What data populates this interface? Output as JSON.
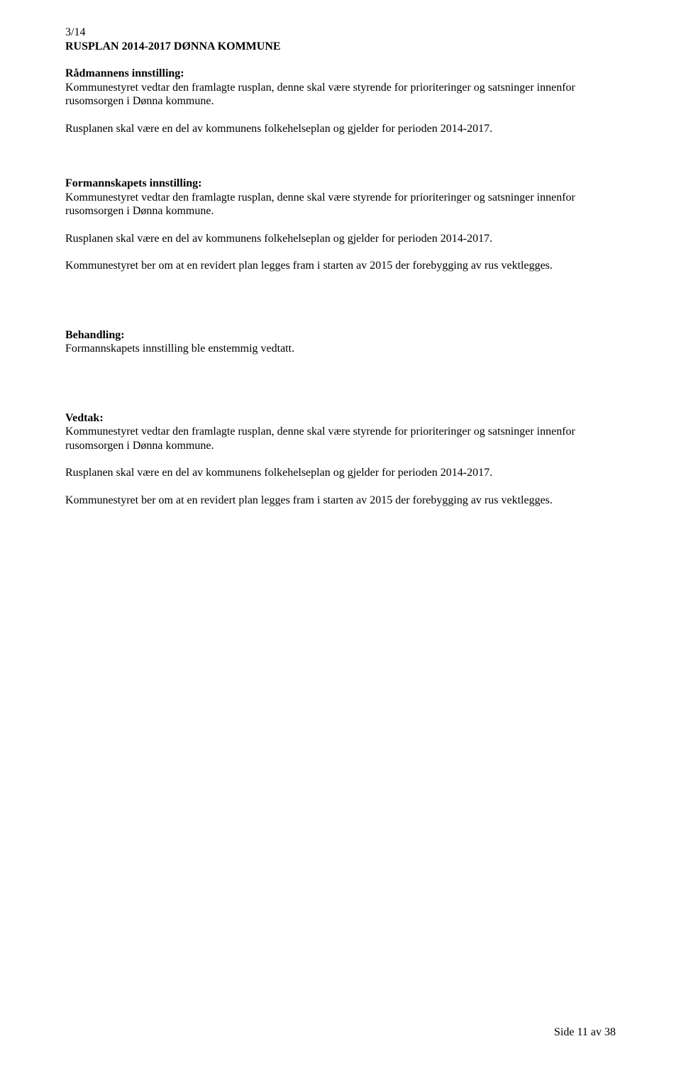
{
  "header": {
    "case_number": "3/14",
    "title": "RUSPLAN 2014-2017 DØNNA KOMMUNE"
  },
  "radmannen": {
    "heading": "Rådmannens innstilling:",
    "p1": "Kommunestyret vedtar den framlagte rusplan, denne skal være styrende for prioriteringer og satsninger innenfor rusomsorgen i Dønna kommune.",
    "p2": "Rusplanen skal være en del av kommunens folkehelseplan og gjelder for perioden 2014-2017."
  },
  "formannskapet": {
    "heading": "Formannskapets innstilling:",
    "p1": "Kommunestyret vedtar den framlagte rusplan, denne skal være styrende for prioriteringer og satsninger innenfor rusomsorgen i Dønna kommune.",
    "p2": "Rusplanen skal være en del av kommunens folkehelseplan og gjelder for perioden 2014-2017.",
    "p3": "Kommunestyret ber om at en revidert plan legges fram i starten av 2015 der forebygging av rus vektlegges."
  },
  "behandling": {
    "heading": "Behandling:",
    "p1": "Formannskapets innstilling ble enstemmig vedtatt."
  },
  "vedtak": {
    "heading": "Vedtak:",
    "p1": "Kommunestyret vedtar den framlagte rusplan, denne skal være styrende for prioriteringer og satsninger innenfor rusomsorgen i Dønna kommune.",
    "p2": "Rusplanen skal være en del av kommunens folkehelseplan og gjelder for perioden 2014-2017.",
    "p3": "Kommunestyret ber om at en revidert plan legges fram i starten av 2015 der forebygging av rus vektlegges."
  },
  "footer": {
    "page": "Side 11 av 38"
  }
}
